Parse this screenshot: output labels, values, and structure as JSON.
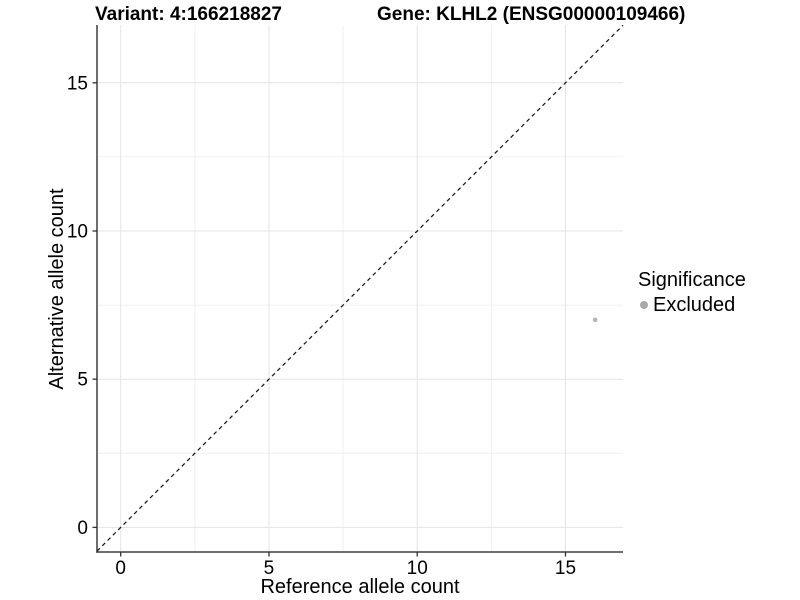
{
  "chart_data": {
    "type": "scatter",
    "titles": {
      "left": "Variant: 4:166218827",
      "right": "Gene: KLHL2 (ENSG00000109466)"
    },
    "xlabel": "Reference allele count",
    "ylabel": "Alternative allele count",
    "xlim": [
      -0.8,
      16.94
    ],
    "ylim": [
      -0.83,
      16.95
    ],
    "x_ticks": [
      0,
      5,
      10,
      15
    ],
    "y_ticks": [
      0,
      5,
      10,
      15
    ],
    "x_minor_ticks": [
      2.5,
      7.5,
      12.5
    ],
    "y_minor_ticks": [
      2.5,
      7.5,
      12.5
    ],
    "grid": "major+minor",
    "legend_position": "right",
    "reference_line": {
      "slope": 1,
      "intercept": 0,
      "linetype": "dashed"
    },
    "series": [
      {
        "name": "Excluded",
        "color": "#b5b5b5",
        "points": [
          {
            "x": 16,
            "y": 7
          }
        ]
      }
    ],
    "legend": {
      "title": "Significance",
      "entries": [
        {
          "label": "Excluded",
          "color": "#a8a8a8"
        }
      ]
    },
    "style": {
      "background": "#ffffff",
      "grid_major_color": "#e4e4e4",
      "grid_minor_color": "#f0f0f0",
      "axis_line_color": "#3f3f3f",
      "tick_color": "#333333",
      "reference_line_color": "#111111",
      "text_color": "#000000"
    }
  }
}
